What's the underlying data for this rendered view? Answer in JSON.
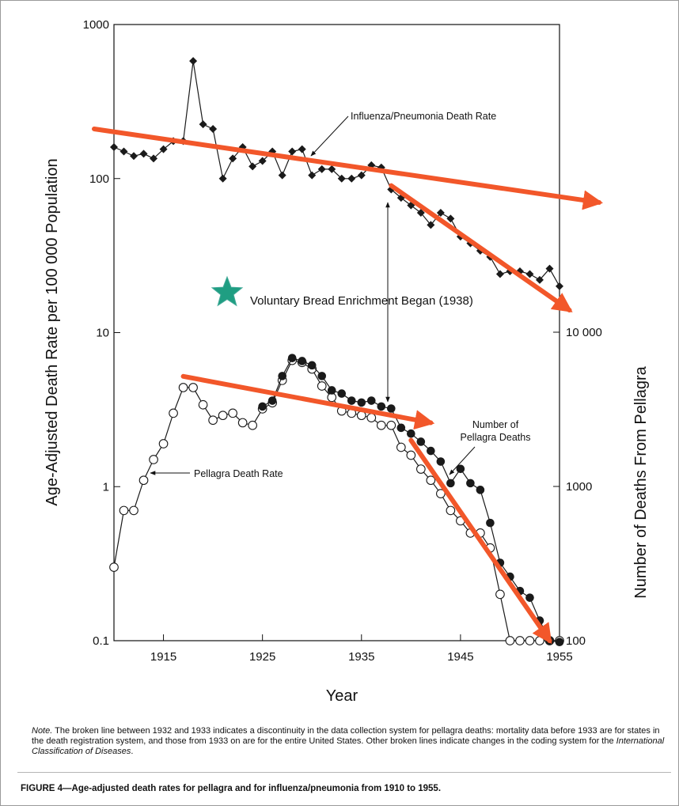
{
  "chart_data": {
    "type": "line",
    "xlabel": "Year",
    "ylabel_left": "Age-Adjusted Death Rate per 100 000 Population",
    "ylabel_right": "Number of Deaths From Pellagra",
    "xlim": [
      1910,
      1955
    ],
    "ylim_left": [
      0.1,
      1000
    ],
    "ylim_right": [
      100,
      10000
    ],
    "y_scale": "log",
    "x_ticks": [
      "1915",
      "1925",
      "1935",
      "1945",
      "1955"
    ],
    "y_ticks_left": [
      "1000",
      "100",
      "10",
      "1",
      "0.1"
    ],
    "y_ticks_right": [
      "10 000",
      "1000",
      "100"
    ],
    "series": [
      {
        "name": "Influenza/Pneumonia Death Rate",
        "axis": "left",
        "x": [
          1910,
          1911,
          1912,
          1913,
          1914,
          1915,
          1916,
          1917,
          1918,
          1919,
          1920,
          1921,
          1922,
          1923,
          1924,
          1925,
          1926,
          1927,
          1928,
          1929,
          1930,
          1931,
          1932,
          1933,
          1934,
          1935,
          1936,
          1937,
          1938,
          1939,
          1940,
          1941,
          1942,
          1943,
          1944,
          1945,
          1946,
          1947,
          1948,
          1949,
          1950,
          1951,
          1952,
          1953,
          1954,
          1955
        ],
        "y": [
          160,
          150,
          140,
          145,
          135,
          155,
          175,
          175,
          580,
          225,
          210,
          100,
          135,
          160,
          120,
          130,
          150,
          105,
          150,
          155,
          105,
          115,
          115,
          100,
          100,
          105,
          122,
          118,
          85,
          75,
          67,
          60,
          50,
          60,
          55,
          42,
          38,
          34,
          31,
          24,
          25,
          25,
          24,
          22,
          26,
          20
        ]
      },
      {
        "name": "Pellagra Death Rate",
        "axis": "left",
        "x": [
          1910,
          1911,
          1912,
          1913,
          1914,
          1915,
          1916,
          1917,
          1918,
          1919,
          1920,
          1921,
          1922,
          1923,
          1924,
          1925,
          1926,
          1927,
          1928,
          1929,
          1930,
          1931,
          1932,
          1933,
          1934,
          1935,
          1936,
          1937,
          1938,
          1939,
          1940,
          1941,
          1942,
          1943,
          1944,
          1945,
          1946,
          1947,
          1948,
          1949,
          1950,
          1951,
          1952,
          1953,
          1954,
          1955
        ],
        "y": [
          0.3,
          0.7,
          0.7,
          1.1,
          1.5,
          1.9,
          3.0,
          4.4,
          4.4,
          3.4,
          2.7,
          2.9,
          3.0,
          2.6,
          2.5,
          3.2,
          3.5,
          4.9,
          6.6,
          6.4,
          5.8,
          4.5,
          3.8,
          3.1,
          3.0,
          2.9,
          2.8,
          2.5,
          2.5,
          1.8,
          1.6,
          1.3,
          1.1,
          0.9,
          0.7,
          0.6,
          0.5,
          0.5,
          0.4,
          0.2,
          0.1,
          0.1,
          0.1,
          0.1,
          0.1,
          0.1
        ]
      },
      {
        "name": "Number of Pellagra Deaths",
        "axis": "right",
        "x": [
          1925,
          1926,
          1927,
          1928,
          1929,
          1930,
          1931,
          1932,
          1933,
          1934,
          1935,
          1936,
          1937,
          1938,
          1939,
          1940,
          1941,
          1942,
          1943,
          1944,
          1945,
          1946,
          1947,
          1948,
          1949,
          1950,
          1951,
          1952,
          1953,
          1954,
          1955
        ],
        "y": [
          3300,
          3600,
          5200,
          6800,
          6500,
          6100,
          5200,
          4200,
          4000,
          3600,
          3500,
          3600,
          3300,
          3200,
          2400,
          2200,
          1950,
          1700,
          1450,
          1050,
          1300,
          1050,
          950,
          580,
          320,
          260,
          210,
          190,
          135,
          100,
          98
        ]
      }
    ],
    "annotations": [
      {
        "text": "Influenza/Pneumonia Death Rate",
        "x": 1930,
        "y": 130
      },
      {
        "text": "Pellagra Death Rate",
        "x": 1914,
        "y": 1.3
      },
      {
        "text": "Number of",
        "x": 1946,
        "y": 3200
      },
      {
        "text": "Pellagra Deaths",
        "x": 1946,
        "y": 2500
      },
      {
        "text": "Voluntary Bread Enrichment Began (1938)",
        "x": 1938,
        "y": 18
      }
    ],
    "trend_arrows": [
      {
        "from": [
          1908,
          210
        ],
        "to": [
          1959,
          70
        ],
        "axis": "left"
      },
      {
        "from": [
          1938,
          90
        ],
        "to": [
          1956,
          14
        ],
        "axis": "left"
      },
      {
        "from": [
          1917,
          5.2
        ],
        "to": [
          1942,
          2.6
        ],
        "axis": "left"
      },
      {
        "from": [
          1940,
          2.0
        ],
        "to": [
          1954,
          0.1
        ],
        "axis": "left"
      }
    ],
    "colors": {
      "arrow": "#f2572a",
      "star": "#1f9e82",
      "line": "#1a1a1a"
    }
  },
  "note": {
    "label": "Note.",
    "text_before": " The broken line between 1932 and 1933 indicates a discontinuity in the data collection system for pellagra deaths: mortality data before 1933 are for states in the death registration system, and those from 1933 on are for the entire United States. Other broken lines indicate changes in the coding system for the ",
    "classification": "International Classification of Diseases",
    "text_after": "."
  },
  "caption": "FIGURE 4—Age-adjusted death rates for pellagra and for influenza/pneumonia from 1910 to 1955."
}
